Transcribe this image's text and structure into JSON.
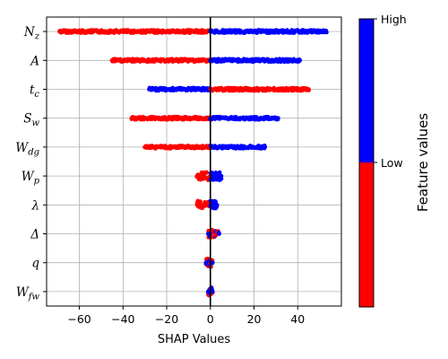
{
  "chart_data": {
    "type": "scatter",
    "subtype": "shap-beeswarm",
    "title": "",
    "xlabel": "SHAP Values",
    "ylabel": "",
    "xlim": [
      -75,
      60
    ],
    "x_ticks": [
      -60,
      -40,
      -20,
      0,
      20,
      40
    ],
    "x_tick_labels": [
      "−60",
      "−40",
      "−20",
      "0",
      "20",
      "40"
    ],
    "grid": true,
    "zero_line": true,
    "features": [
      {
        "label_base": "N",
        "label_sub": "z",
        "segments": [
          {
            "from": -69,
            "to": 0,
            "color": "red"
          },
          {
            "from": 0,
            "to": 53,
            "color": "blue"
          }
        ]
      },
      {
        "label_base": "A",
        "label_sub": "",
        "segments": [
          {
            "from": -45,
            "to": 0,
            "color": "red"
          },
          {
            "from": 0,
            "to": 41,
            "color": "blue"
          }
        ]
      },
      {
        "label_base": "t",
        "label_sub": "c",
        "segments": [
          {
            "from": -28,
            "to": 0,
            "color": "blue"
          },
          {
            "from": 0,
            "to": 45,
            "color": "red"
          }
        ]
      },
      {
        "label_base": "S",
        "label_sub": "w",
        "segments": [
          {
            "from": -36,
            "to": 0,
            "color": "red"
          },
          {
            "from": 0,
            "to": 31,
            "color": "blue"
          }
        ]
      },
      {
        "label_base": "W",
        "label_sub": "dg",
        "segments": [
          {
            "from": -30,
            "to": 0,
            "color": "red"
          },
          {
            "from": 0,
            "to": 25,
            "color": "blue"
          }
        ]
      },
      {
        "label_base": "W",
        "label_sub": "p",
        "segments": [
          {
            "from": -6,
            "to": 0,
            "color": "red"
          },
          {
            "from": 0,
            "to": 5,
            "color": "blue"
          }
        ]
      },
      {
        "label_base": "λ",
        "label_sub": "",
        "segments": [
          {
            "from": -6,
            "to": 0,
            "color": "red"
          },
          {
            "from": 0,
            "to": 3,
            "color": "blue"
          }
        ]
      },
      {
        "label_base": "Δ",
        "label_sub": "",
        "segments": [
          {
            "from": -1,
            "to": 4,
            "color": "mixed"
          }
        ]
      },
      {
        "label_base": "q",
        "label_sub": "",
        "segments": [
          {
            "from": -2,
            "to": 1,
            "color": "mixed"
          }
        ]
      },
      {
        "label_base": "W",
        "label_sub": "fw",
        "segments": [
          {
            "from": -1,
            "to": 1,
            "color": "mixed"
          }
        ]
      }
    ],
    "colorbar": {
      "title": "Feature values",
      "high_label": "High",
      "low_label": "Low",
      "high_color": "#0000ff",
      "low_color": "#ff0000"
    }
  },
  "colors": {
    "high": "#0000ff",
    "low": "#ff0000",
    "grid": "#b0b0b0",
    "axis": "#000000"
  }
}
